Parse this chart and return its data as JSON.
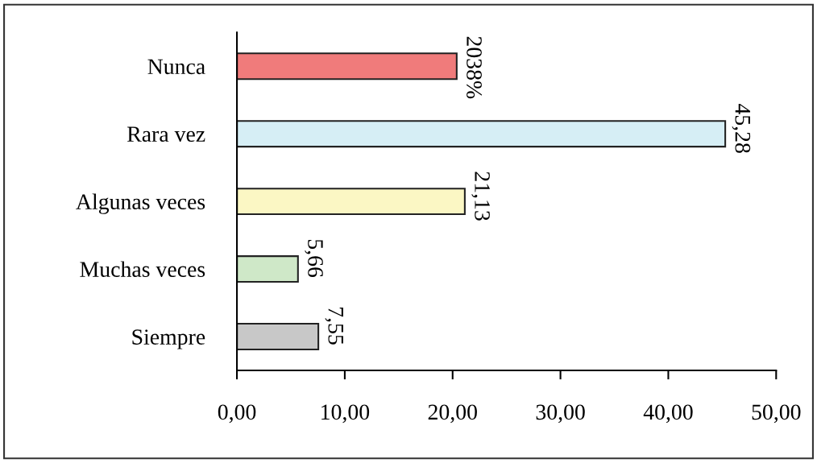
{
  "chart_data": {
    "type": "bar",
    "orientation": "horizontal",
    "categories": [
      "Nunca",
      "Rara vez",
      "Algunas veces",
      "Muchas veces",
      "Siempre"
    ],
    "values": [
      20.38,
      45.28,
      21.13,
      5.66,
      7.55
    ],
    "colors": [
      "#f07b7b",
      "#d6eef5",
      "#fbf7c4",
      "#cfe8c8",
      "#c8c8c8"
    ],
    "value_labels": [
      "2038%",
      "45,28",
      "21,13",
      "5,66",
      "7,55"
    ],
    "xlim": [
      0,
      50
    ],
    "xticks": [
      {
        "value": 0,
        "label": "0,00"
      },
      {
        "value": 10,
        "label": "10,00"
      },
      {
        "value": 20,
        "label": "20,00"
      },
      {
        "value": 30,
        "label": "30,00"
      },
      {
        "value": 40,
        "label": "40,00"
      },
      {
        "value": 50,
        "label": "50,00"
      }
    ],
    "grid": false,
    "legend": false
  }
}
